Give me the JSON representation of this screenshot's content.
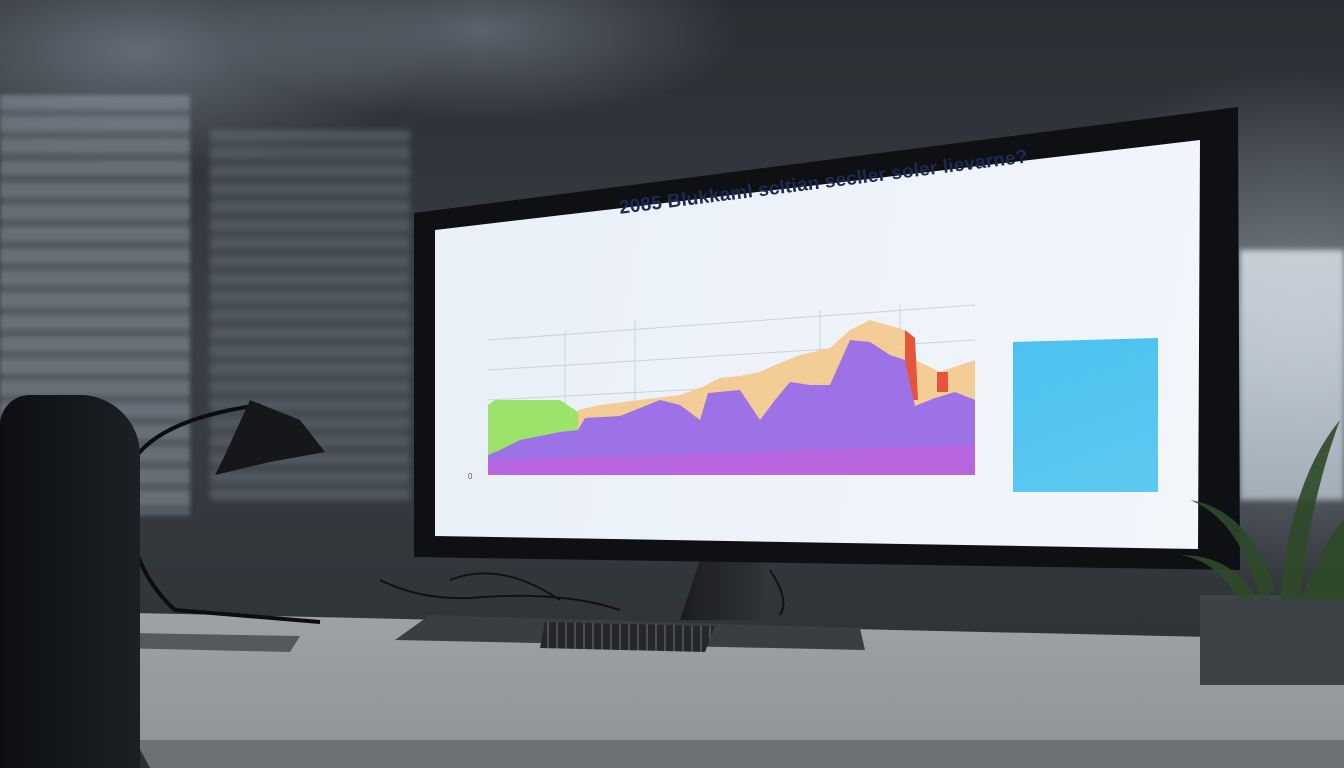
{
  "screen": {
    "title": "2085 Blukkaml scltian secller soler lievarne?",
    "y_axis_zero": "0"
  },
  "colors": {
    "screen_bg": "#eaf0f8",
    "purple": "#9b6be0",
    "violet": "#b865e0",
    "green": "#9be36a",
    "orange": "#f4c06a",
    "red": "#e6553a",
    "panel_blue": "#3fb0ec"
  }
}
